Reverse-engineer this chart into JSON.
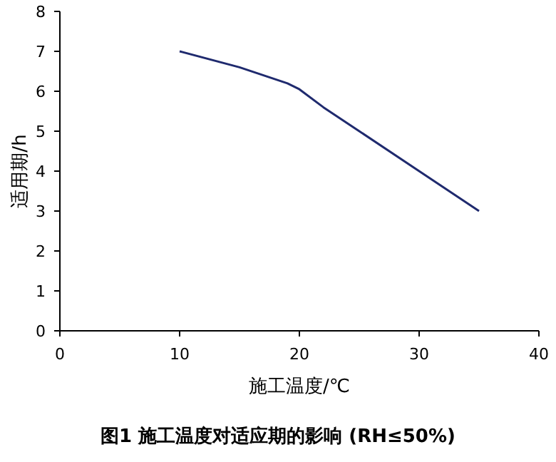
{
  "chart_data": {
    "type": "line",
    "title": "图1 施工温度对适应期的影响 (RH≤50%)",
    "xlabel": "施工温度/℃",
    "ylabel": "适用期/h",
    "x": [
      10,
      15,
      19,
      20,
      22,
      25,
      30,
      35
    ],
    "series": [
      {
        "color": "#1f2a6e",
        "values": [
          7,
          6.6,
          6.2,
          6.05,
          5.6,
          5.0,
          4.0,
          3.0
        ]
      }
    ],
    "xlim": [
      0,
      40
    ],
    "xticks": [
      0,
      10,
      20,
      30,
      40
    ],
    "ylim": [
      0,
      8
    ],
    "yticks": [
      0,
      1,
      2,
      3,
      4,
      5,
      6,
      7,
      8
    ],
    "grid": false,
    "marker": "none",
    "line_style": "solid"
  }
}
